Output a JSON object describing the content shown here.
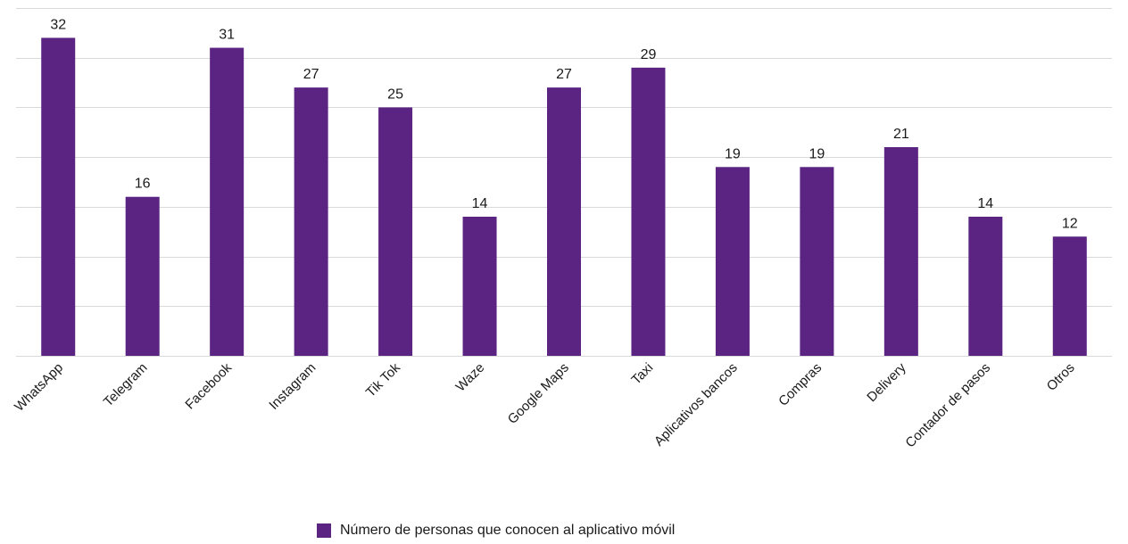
{
  "chart_data": {
    "type": "bar",
    "categories": [
      "WhatsApp",
      "Telegram",
      "Facebook",
      "Instagram",
      "Tik Tok",
      "Waze",
      "Google Maps",
      "Taxi",
      "Aplicativos bancos",
      "Compras",
      "Delivery",
      "Contador de pasos",
      "Otros"
    ],
    "series": [
      {
        "name": "Número de personas que conocen al aplicativo móvil",
        "values": [
          32,
          16,
          31,
          27,
          25,
          14,
          27,
          29,
          19,
          19,
          21,
          14,
          12
        ],
        "color": "#5b2483"
      }
    ],
    "ylim": [
      0,
      35
    ],
    "grid": true,
    "gridline_step": 5,
    "y_tick_labels_shown": false,
    "x_tick_rotation_deg": -45,
    "legend_position": "bottom"
  }
}
